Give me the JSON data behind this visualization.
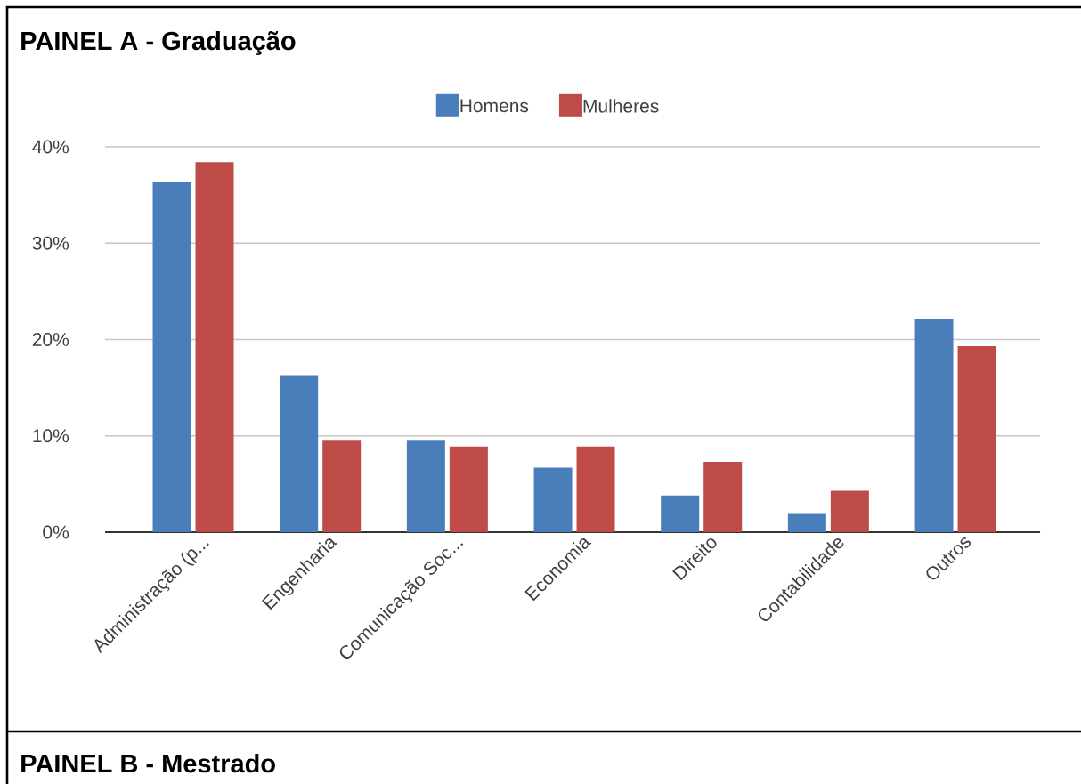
{
  "chart_data": {
    "type": "bar",
    "title": "PAINEL A - Graduação",
    "categories": [
      "Administração (p...",
      "Engenharia",
      "Comunicação Soc...",
      "Economia",
      "Direito",
      "Contabilidade",
      "Outros"
    ],
    "series": [
      {
        "name": "Homens",
        "color": "#4a7ebb",
        "values": [
          36.4,
          16.3,
          9.5,
          6.7,
          3.8,
          1.9,
          22.1
        ]
      },
      {
        "name": "Mulheres",
        "color": "#be4b48",
        "values": [
          38.4,
          9.5,
          8.9,
          8.9,
          7.3,
          4.3,
          19.3
        ]
      }
    ],
    "ylim": [
      0,
      40
    ],
    "yticks": [
      {
        "value": 0,
        "label": "0%"
      },
      {
        "value": 10,
        "label": "10%"
      },
      {
        "value": 20,
        "label": "20%"
      },
      {
        "value": 30,
        "label": "30%"
      },
      {
        "value": 40,
        "label": "40%"
      }
    ],
    "grid": "y",
    "legend": "top",
    "annotations": [
      "PAINEL B - Mestrado"
    ]
  }
}
